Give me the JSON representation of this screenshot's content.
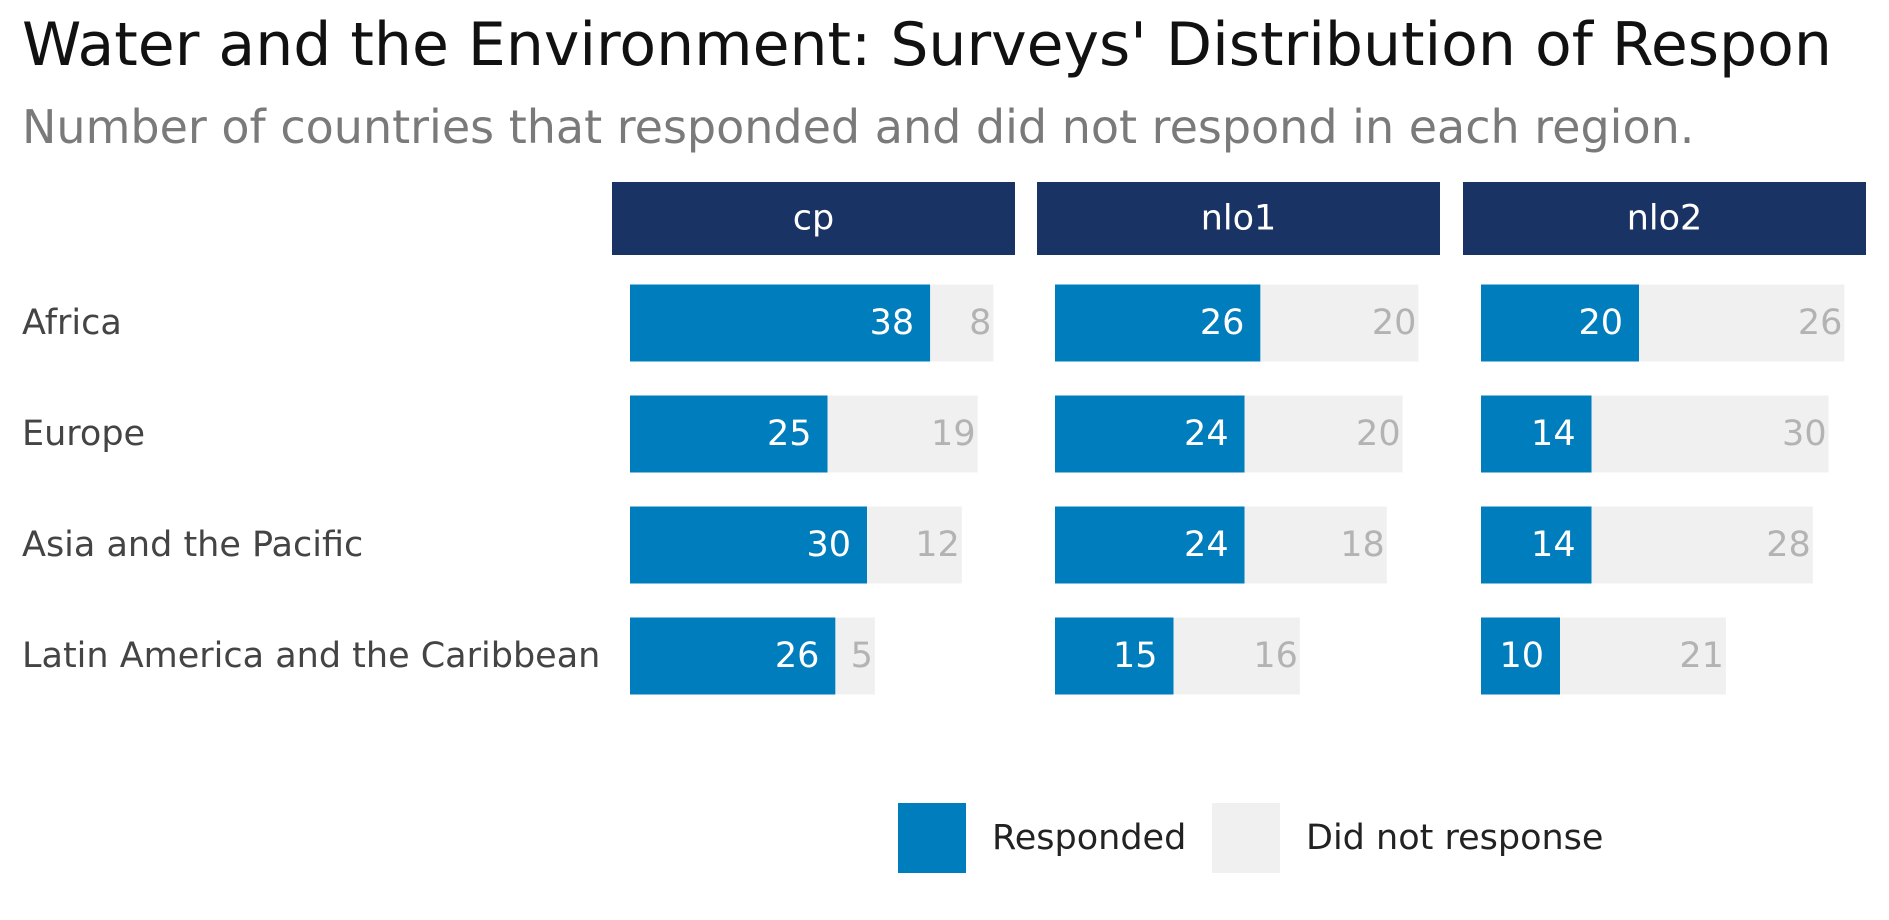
{
  "chart_data": {
    "type": "bar",
    "orientation": "horizontal",
    "stacked": true,
    "title": "Water and the Environment: Surveys' Distribution of Respon",
    "subtitle": "Number of countries that responded and did not respond in each region.",
    "categories": [
      "Africa",
      "Europe",
      "Asia and the Pacific",
      "Latin America and the Caribbean"
    ],
    "facets": [
      {
        "label": "cp",
        "series": [
          {
            "name": "Responded",
            "values": [
              38,
              25,
              30,
              26
            ]
          },
          {
            "name": "Did not response",
            "values": [
              8,
              19,
              12,
              5
            ]
          }
        ]
      },
      {
        "label": "nlo1",
        "series": [
          {
            "name": "Responded",
            "values": [
              26,
              24,
              24,
              15
            ]
          },
          {
            "name": "Did not response",
            "values": [
              20,
              20,
              18,
              16
            ]
          }
        ]
      },
      {
        "label": "nlo2",
        "series": [
          {
            "name": "Responded",
            "values": [
              20,
              14,
              14,
              10
            ]
          },
          {
            "name": "Did not response",
            "values": [
              26,
              30,
              28,
              21
            ]
          }
        ]
      }
    ],
    "xlim": [
      0,
      46
    ],
    "legend": {
      "position": "bottom",
      "entries": [
        {
          "label": "Responded",
          "color": "#007dbc"
        },
        {
          "label": "Did not response",
          "color": "#f0f0f0"
        }
      ]
    },
    "colors": {
      "responded": "#007dbc",
      "not_responded": "#f0f0f0",
      "facet_header": "#1a3365"
    },
    "grid": false
  }
}
